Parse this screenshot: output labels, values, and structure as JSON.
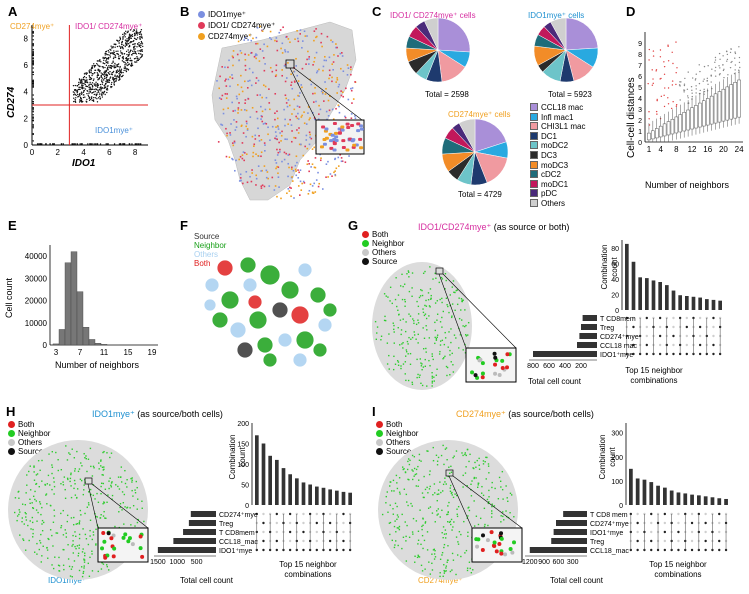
{
  "panels": {
    "A": {
      "label": "A",
      "gate_cd274": "CD274mye⁺",
      "gate_both": "IDO1/ CD274mye⁺",
      "gate_ido1": "IDO1mye⁺",
      "xlabel": "IDO1",
      "ylabel": "CD274",
      "xticks": [
        "0",
        "2",
        "4",
        "6",
        "8"
      ],
      "yticks": [
        "0",
        "2",
        "4",
        "6",
        "8"
      ],
      "colors": {
        "cd274": "#f0a020",
        "both": "#d62ea0",
        "ido1": "#4a90d9",
        "gate": "#e02020"
      }
    },
    "B": {
      "label": "B",
      "legend": [
        "IDO1mye⁺",
        "IDO1/ CD274mye⁺",
        "CD274mye⁺"
      ],
      "legend_colors": [
        "#7b8fe0",
        "#e03a5a",
        "#f0a020"
      ]
    },
    "C": {
      "label": "C",
      "pie1_title": "IDO1/ CD274mye⁺ cells",
      "pie1_total": "Total = 2598",
      "pie2_title": "IDO1mye⁺ cells",
      "pie2_total": "Total = 5923",
      "pie3_title": "CD274mye⁺ cells",
      "pie3_total": "Total = 4729",
      "legend": [
        "CCL18 mac",
        "Infl mac1",
        "CHI3L1 mac",
        "DC1",
        "moDC2",
        "DC3",
        "moDC3",
        "cDC2",
        "moDC1",
        "pDC",
        "Others"
      ],
      "colors": [
        "#a98fd8",
        "#29a9e0",
        "#f09aa0",
        "#1e3a6e",
        "#6dc4c9",
        "#2b2b2b",
        "#f28c28",
        "#1f6c7a",
        "#c2185b",
        "#4a2a7a",
        "#cfcfcf"
      ]
    },
    "D": {
      "label": "D",
      "ylabel": "Cell-cell distances",
      "xlabel": "Number of neighbors",
      "xticks": [
        "1",
        "4",
        "8",
        "12",
        "16",
        "20",
        "24"
      ],
      "yticks": [
        "0",
        "1",
        "2",
        "3",
        "4",
        "5",
        "6",
        "7",
        "8",
        "9"
      ]
    },
    "E": {
      "label": "E",
      "ylabel": "Cell count",
      "xlabel": "Number of neighbors",
      "xticks": [
        "3",
        "7",
        "11",
        "15",
        "19"
      ],
      "yticks": [
        "0",
        "10000",
        "20000",
        "30000",
        "40000"
      ]
    },
    "F": {
      "label": "F",
      "legend": [
        "Source",
        "Neighbor",
        "Others",
        "Both"
      ],
      "legend_colors": [
        "#333333",
        "#1aa01a",
        "#a8d0f0",
        "#e02020"
      ]
    },
    "G": {
      "label": "G",
      "title": "IDO1/CD274mye⁺",
      "title_suffix": "(as source or both)",
      "legend": [
        "Both",
        "Neighbor",
        "Others",
        "Source"
      ],
      "bar_ylabel": "Combination count",
      "bar_yticks": [
        "0",
        "20",
        "40",
        "60",
        "80"
      ],
      "combo_caption": "Top 15 neighbor combinations",
      "set_labels": [
        "T CD8mem",
        "Treg",
        "CD274⁺mye",
        "CCL18 mac",
        "IDO1⁺mye"
      ],
      "set_xticks": [
        "800",
        "600",
        "400",
        "200"
      ],
      "set_xlabel": "Total cell count"
    },
    "H": {
      "label": "H",
      "title": "IDO1mye⁺",
      "title_suffix": "(as source/both cells)",
      "legend": [
        "Both",
        "Neighbor",
        "Others",
        "Source"
      ],
      "map_caption": "IDO1mye⁺",
      "bar_ylabel": "Combination count",
      "bar_yticks": [
        "0",
        "50",
        "100",
        "150",
        "200"
      ],
      "combo_caption": "Top 15 neighbor combinations",
      "set_labels": [
        "CD274⁺mye",
        "Treg",
        "T CD8mem",
        "CCL18_mac",
        "IDO1⁺mye"
      ],
      "set_xticks": [
        "1500",
        "1000",
        "500"
      ],
      "set_xlabel": "Total cell count"
    },
    "I": {
      "label": "I",
      "title": "CD274mye⁺",
      "title_suffix": "(as source/both cells)",
      "legend": [
        "Both",
        "Neighbor",
        "Others",
        "Source"
      ],
      "map_caption": "CD274mye⁺",
      "bar_ylabel": "Combination count",
      "bar_yticks": [
        "0",
        "100",
        "200",
        "300"
      ],
      "combo_caption": "Top 15 neighbor combinations",
      "set_labels": [
        "T CD8 mem",
        "CD274⁺mye",
        "IDO1⁺mye",
        "Treg",
        "CCL18_mac"
      ],
      "set_xticks": [
        "1200",
        "900",
        "600",
        "300"
      ],
      "set_xlabel": "Total cell count"
    }
  },
  "chart_data": [
    {
      "type": "pie",
      "title": "IDO1/ CD274mye⁺ cells",
      "total": 2598,
      "labels": [
        "CCL18 mac",
        "Infl mac1",
        "CHI3L1 mac",
        "DC1",
        "moDC2",
        "DC3",
        "moDC3",
        "cDC2",
        "moDC1",
        "pDC",
        "Others"
      ],
      "values": [
        26,
        8,
        14,
        8,
        6,
        7,
        7,
        6,
        6,
        5,
        7
      ]
    },
    {
      "type": "pie",
      "title": "IDO1mye⁺ cells",
      "total": 5923,
      "labels": [
        "CCL18 mac",
        "Infl mac1",
        "CHI3L1 mac",
        "DC1",
        "moDC2",
        "DC3",
        "moDC3",
        "cDC2",
        "moDC1",
        "pDC",
        "Others"
      ],
      "values": [
        24,
        10,
        12,
        7,
        10,
        4,
        10,
        6,
        5,
        4,
        8
      ]
    },
    {
      "type": "pie",
      "title": "CD274mye⁺ cells",
      "total": 4729,
      "labels": [
        "CCL18 mac",
        "Infl mac1",
        "CHI3L1 mac",
        "DC1",
        "moDC2",
        "DC3",
        "moDC3",
        "cDC2",
        "moDC1",
        "pDC",
        "Others"
      ],
      "values": [
        20,
        8,
        16,
        8,
        7,
        6,
        9,
        8,
        6,
        4,
        8
      ]
    },
    {
      "type": "bar",
      "title": "E",
      "xlabel": "Number of neighbors",
      "ylabel": "Cell count",
      "x": [
        3,
        4,
        5,
        6,
        7,
        8,
        9,
        10,
        11,
        12,
        13
      ],
      "values": [
        500,
        7000,
        37000,
        42000,
        24000,
        8000,
        2500,
        800,
        300,
        100,
        50
      ],
      "ylim": [
        0,
        45000
      ]
    },
    {
      "type": "bar",
      "title": "G combinations",
      "ylabel": "Combination count",
      "values": [
        85,
        62,
        42,
        41,
        38,
        36,
        32,
        25,
        19,
        18,
        17,
        16,
        14,
        13,
        12
      ],
      "ylim": [
        0,
        90
      ]
    },
    {
      "type": "bar",
      "title": "G set sizes",
      "xlabel": "Total cell count",
      "categories": [
        "T CD8mem",
        "Treg",
        "CD274⁺mye",
        "CCL18 mac",
        "IDO1⁺mye"
      ],
      "values": [
        180,
        200,
        220,
        250,
        800
      ]
    },
    {
      "type": "bar",
      "title": "H combinations",
      "ylabel": "Combination count",
      "values": [
        170,
        150,
        120,
        110,
        90,
        75,
        65,
        55,
        50,
        45,
        42,
        38,
        35,
        32,
        30
      ],
      "ylim": [
        0,
        200
      ]
    },
    {
      "type": "bar",
      "title": "H set sizes",
      "xlabel": "Total cell count",
      "categories": [
        "CD274⁺mye",
        "Treg",
        "T CD8mem",
        "CCL18_mac",
        "IDO1⁺mye"
      ],
      "values": [
        650,
        700,
        850,
        1100,
        1500
      ]
    },
    {
      "type": "bar",
      "title": "I combinations",
      "ylabel": "Combination count",
      "values": [
        150,
        110,
        105,
        95,
        80,
        72,
        60,
        52,
        48,
        43,
        40,
        36,
        32,
        28,
        25
      ],
      "ylim": [
        0,
        340
      ]
    },
    {
      "type": "bar",
      "title": "I set sizes",
      "xlabel": "Total cell count",
      "categories": [
        "T CD8 mem",
        "CD274⁺mye",
        "IDO1⁺mye",
        "Treg",
        "CCL18_mac"
      ],
      "values": [
        500,
        650,
        700,
        750,
        1200
      ]
    }
  ]
}
